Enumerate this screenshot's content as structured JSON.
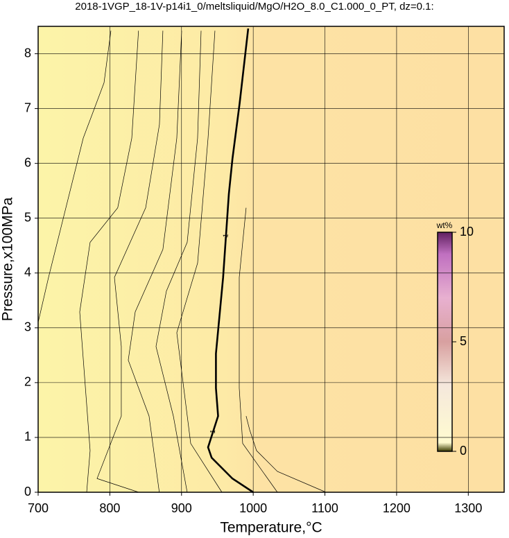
{
  "chart_data": {
    "type": "contour",
    "title": "2018-1VGP_18-1V-p14i1_0/meltsliquid/MgO/H2O_8.0_C1.000_0_PT, dz=0.1:",
    "x_label": "Temperature,°C",
    "y_label": "Pressure,x100MPa",
    "xlim": [
      700,
      1350
    ],
    "xticks": [
      700,
      800,
      900,
      1000,
      1100,
      1200,
      1300
    ],
    "ylim": [
      0,
      8.5
    ],
    "yticks": [
      0,
      1,
      2,
      3,
      4,
      5,
      6,
      7,
      8
    ],
    "grid": true,
    "contours": [
      {
        "x": [
          700,
          714.5,
          738.7,
          762.9,
          791.9,
          801.5
        ],
        "y": [
          3.1,
          3.92,
          5.19,
          6.46,
          7.47,
          8.42
        ]
      },
      {
        "x": [
          767.7,
          772.5,
          758,
          772.5,
          811,
          830.6,
          840
        ],
        "y": [
          0,
          0.76,
          3.29,
          4.56,
          5.19,
          6.46,
          8.42
        ]
      },
      {
        "x": [
          840.2,
          782.2,
          816,
          816,
          806.4,
          850,
          869.2,
          874
        ],
        "y": [
          0,
          0.25,
          1.39,
          2.66,
          3.92,
          5.19,
          6.71,
          8.42
        ]
      },
      {
        "x": [
          869,
          854.7,
          825.7,
          835.4,
          874,
          893.4,
          900.2
        ],
        "y": [
          0,
          1.39,
          2.41,
          3.29,
          4.43,
          6.46,
          8.42
        ]
      },
      {
        "x": [
          907.9,
          888.6,
          864.4,
          878.9,
          907.9,
          922.4,
          927.3
        ],
        "y": [
          0,
          1.39,
          2.66,
          3.67,
          4.56,
          6.46,
          8.42
        ]
      },
      {
        "x": [
          956.3,
          912.8,
          903.1,
          893.4,
          922.4,
          937,
          946.6
        ],
        "y": [
          0,
          0.89,
          1.9,
          2.91,
          4.18,
          6.46,
          8.42
        ]
      },
      {
        "x": [
          1000,
          971,
          942,
          937,
          951,
          948,
          948,
          958,
          966,
          971,
          981,
          993
        ],
        "y": [
          0,
          0.25,
          0.63,
          0.82,
          1.39,
          1.9,
          2.53,
          3.92,
          5.44,
          6.08,
          7.09,
          8.46
        ],
        "label": "1",
        "bold": true
      },
      {
        "x": [
          1033.7,
          985.3,
          980.5,
          980.5,
          990.1
        ],
        "y": [
          0,
          0.89,
          1.9,
          3.92,
          5.19
        ]
      },
      {
        "x": [
          1101.4,
          1033.7,
          1004.6,
          995,
          990.1
        ],
        "y": [
          0,
          0.38,
          0.76,
          1.14,
          1.39
        ]
      }
    ],
    "colorbar": {
      "label": "wt%",
      "lim": [
        0,
        10
      ],
      "ticks": [
        0,
        5,
        10
      ]
    }
  }
}
